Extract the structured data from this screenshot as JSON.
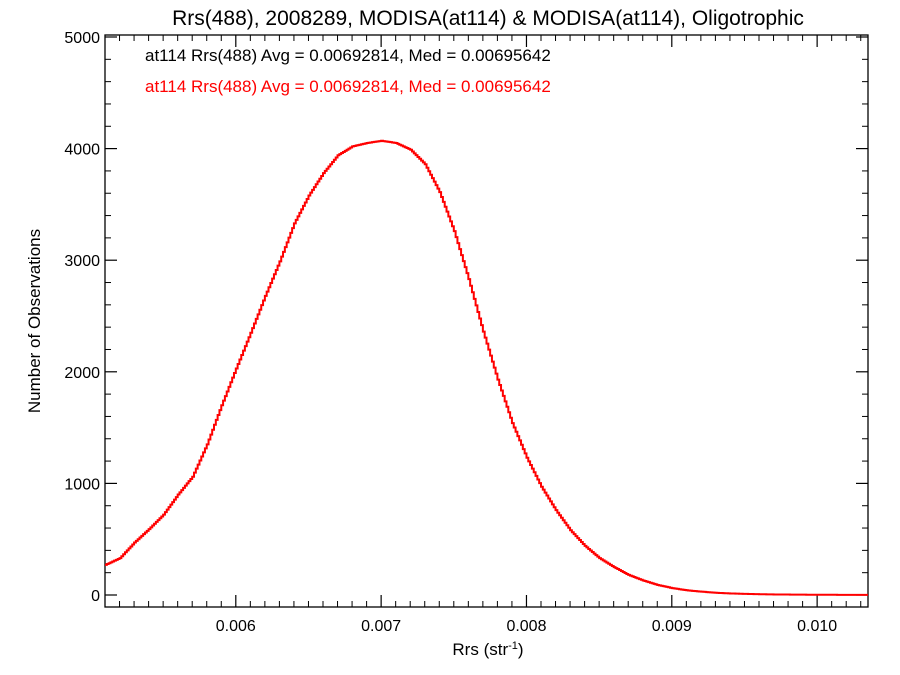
{
  "chart_data": {
    "type": "line",
    "step": true,
    "title": "Rrs(488), 2008289, MODISA(at114) & MODISA(at114), Oligotrophic",
    "xlabel": "Rrs (str",
    "xlabel_sup": "-1",
    "xlabel_close": ")",
    "ylabel": "Number of Observations",
    "xlim": [
      0.0051,
      0.01035
    ],
    "ylim": [
      0,
      5000
    ],
    "x_ticks": [
      0.006,
      0.007,
      0.008,
      0.009,
      0.01
    ],
    "x_tick_labels": [
      "0.006",
      "0.007",
      "0.008",
      "0.009",
      "0.010"
    ],
    "y_ticks": [
      0,
      1000,
      2000,
      3000,
      4000,
      5000
    ],
    "y_tick_labels": [
      "0",
      "1000",
      "2000",
      "3000",
      "4000",
      "5000"
    ],
    "grid": false,
    "legend": [
      {
        "text": "at114 Rrs(488) Avg = 0.00692814, Med = 0.00695642",
        "color": "#000000"
      },
      {
        "text": "at114 Rrs(488) Avg = 0.00692814, Med = 0.00695642",
        "color": "#ff0000"
      }
    ],
    "series": [
      {
        "color": "#ff0000",
        "points": [
          [
            0.0051,
            270
          ],
          [
            0.0052,
            330
          ],
          [
            0.0053,
            470
          ],
          [
            0.0054,
            590
          ],
          [
            0.0055,
            720
          ],
          [
            0.0056,
            900
          ],
          [
            0.0057,
            1060
          ],
          [
            0.0058,
            1350
          ],
          [
            0.0059,
            1700
          ],
          [
            0.006,
            2030
          ],
          [
            0.0061,
            2350
          ],
          [
            0.0062,
            2680
          ],
          [
            0.0063,
            2990
          ],
          [
            0.0064,
            3330
          ],
          [
            0.0065,
            3580
          ],
          [
            0.0066,
            3780
          ],
          [
            0.0067,
            3940
          ],
          [
            0.0068,
            4020
          ],
          [
            0.0069,
            4050
          ],
          [
            0.007,
            4070
          ],
          [
            0.0071,
            4050
          ],
          [
            0.0072,
            3990
          ],
          [
            0.0073,
            3860
          ],
          [
            0.0074,
            3610
          ],
          [
            0.0075,
            3260
          ],
          [
            0.0076,
            2830
          ],
          [
            0.0077,
            2360
          ],
          [
            0.0078,
            1930
          ],
          [
            0.0079,
            1540
          ],
          [
            0.008,
            1230
          ],
          [
            0.0081,
            970
          ],
          [
            0.0082,
            760
          ],
          [
            0.0083,
            580
          ],
          [
            0.0084,
            440
          ],
          [
            0.0085,
            330
          ],
          [
            0.0086,
            250
          ],
          [
            0.0087,
            180
          ],
          [
            0.0088,
            130
          ],
          [
            0.0089,
            90
          ],
          [
            0.009,
            62
          ],
          [
            0.0091,
            42
          ],
          [
            0.0092,
            30
          ],
          [
            0.0093,
            20
          ],
          [
            0.0094,
            14
          ],
          [
            0.0095,
            10
          ],
          [
            0.0096,
            7
          ],
          [
            0.0097,
            5
          ],
          [
            0.0098,
            4
          ],
          [
            0.0099,
            3
          ],
          [
            0.01,
            2
          ],
          [
            0.0101,
            2
          ],
          [
            0.0102,
            1
          ],
          [
            0.01035,
            1
          ]
        ]
      }
    ]
  }
}
